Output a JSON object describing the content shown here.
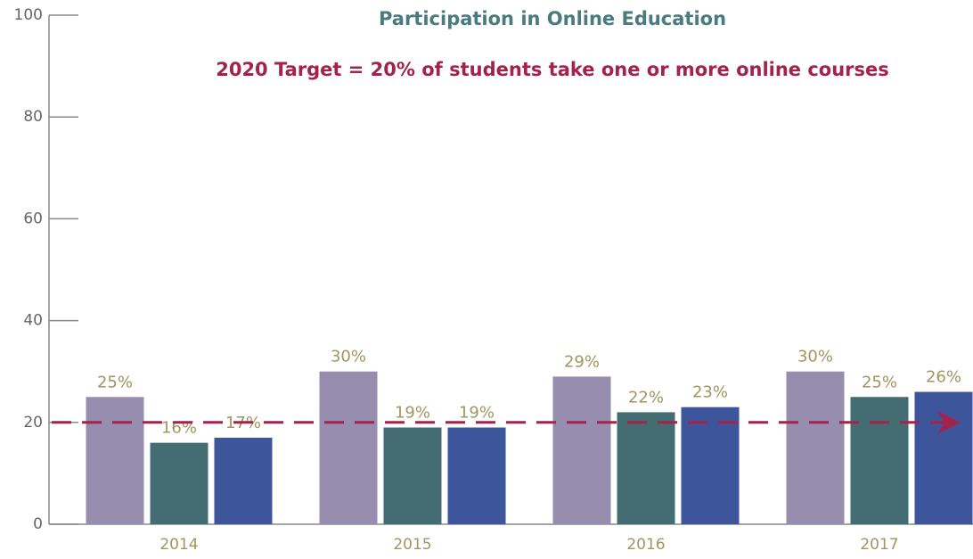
{
  "chart_data": {
    "type": "bar",
    "title": "Participation in Online Education",
    "annotation": "2020 Target = 20% of students take one or more online courses",
    "target": 20,
    "categories": [
      "2014",
      "2015",
      "2016",
      "2017"
    ],
    "series": [
      {
        "color": "#978dae",
        "values": [
          25,
          30,
          29,
          30
        ],
        "value_labels": [
          "25%",
          "30%",
          "29%",
          "30%"
        ]
      },
      {
        "color": "#446c73",
        "values": [
          16,
          19,
          22,
          25
        ],
        "value_labels": [
          "16%",
          "19%",
          "22%",
          "25%"
        ]
      },
      {
        "color": "#3c559b",
        "values": [
          17,
          19,
          23,
          26
        ],
        "value_labels": [
          "17%",
          "19%",
          "23%",
          "26%"
        ]
      }
    ],
    "ylim": [
      0,
      100
    ],
    "yticks": [
      0,
      20,
      40,
      60,
      80,
      100
    ],
    "grid": false
  }
}
